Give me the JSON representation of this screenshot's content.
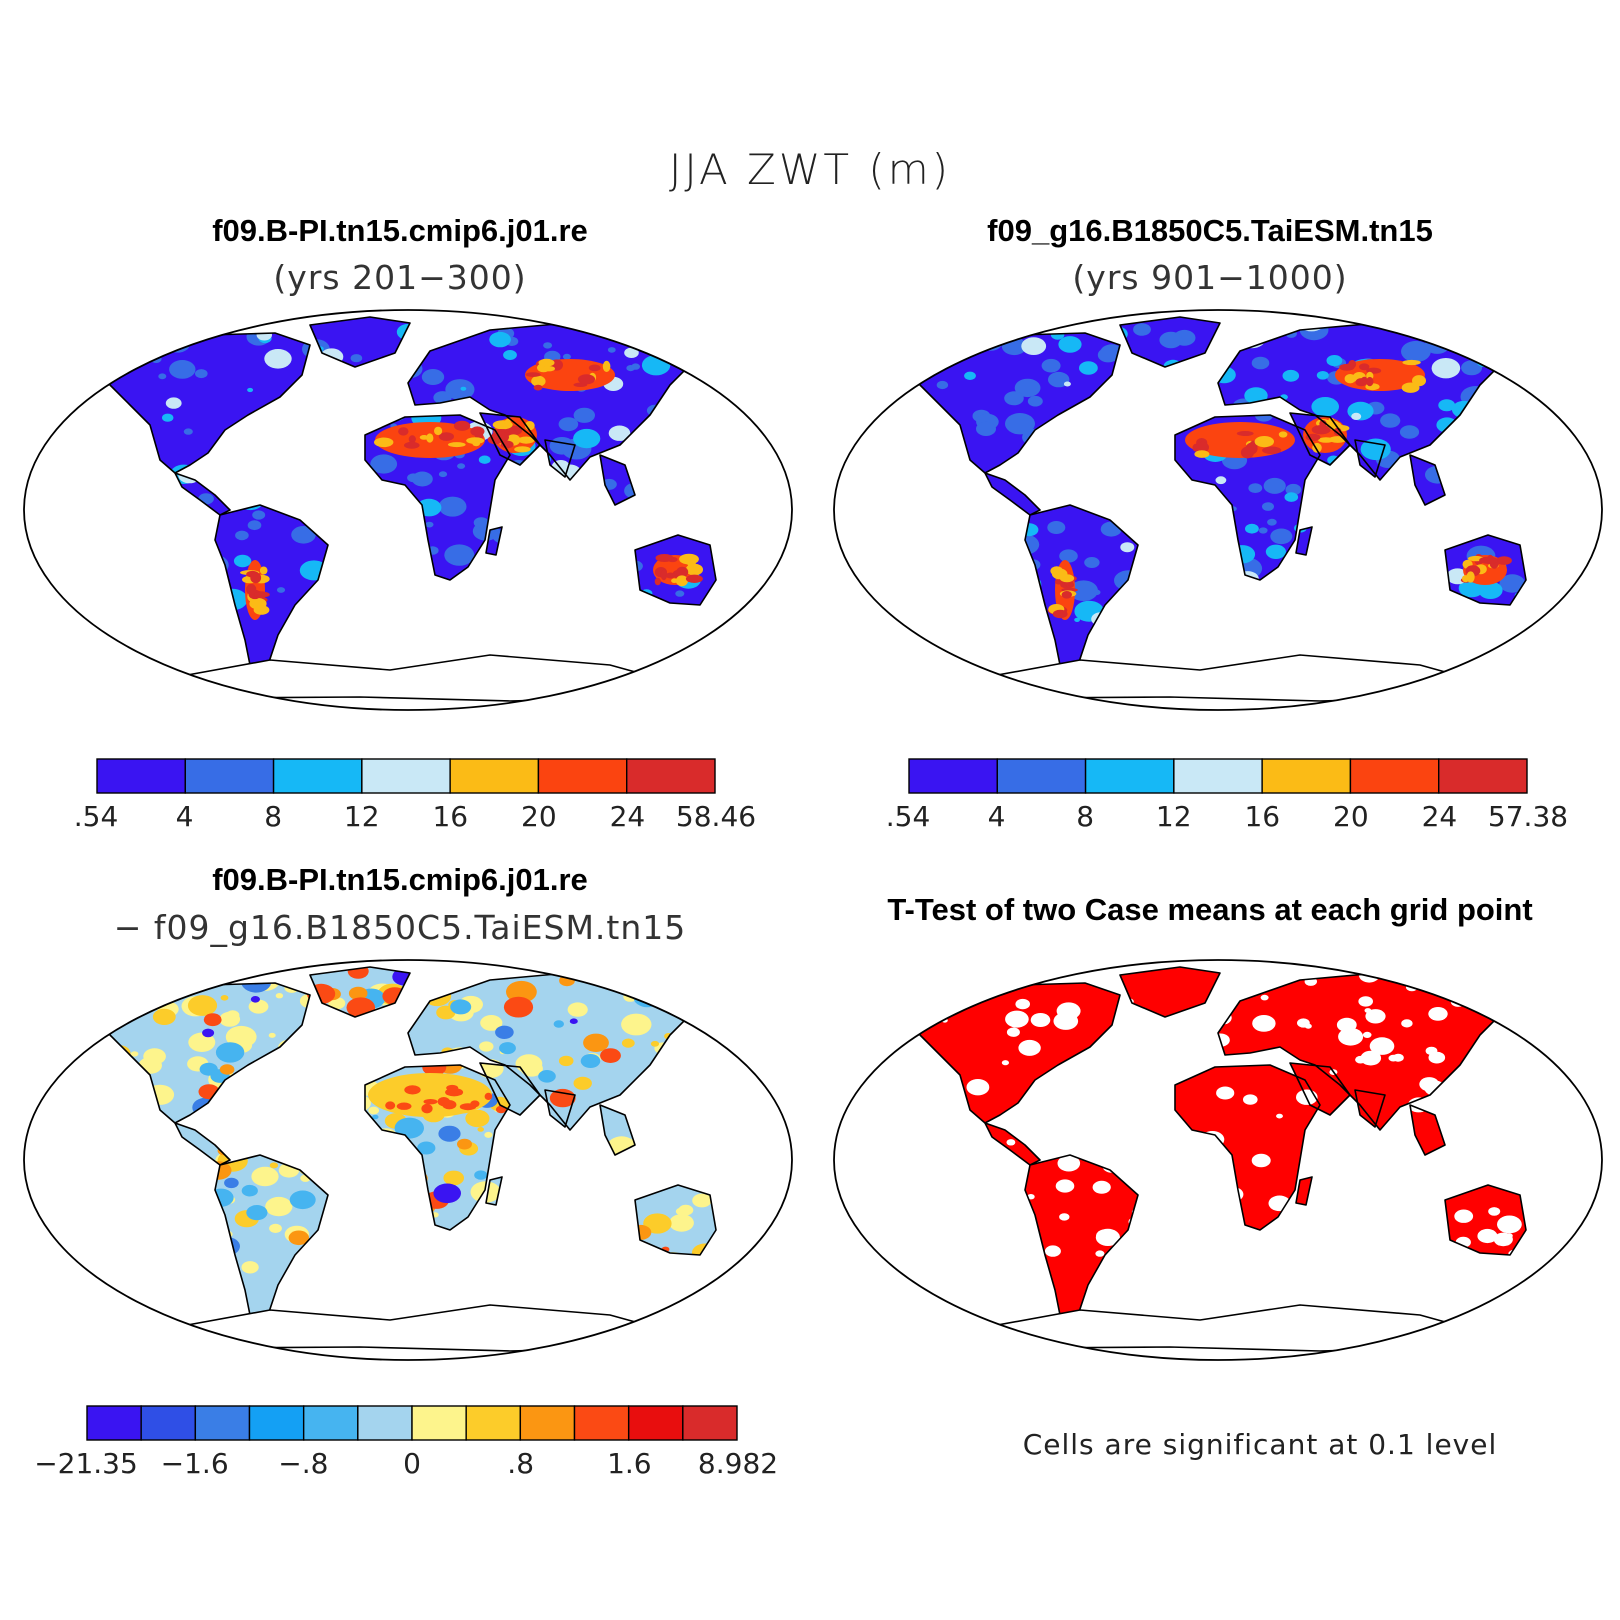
{
  "title": "JJA ZWT (m)",
  "panels": [
    {
      "title": "f09.B-PI.tn15.cmip6.j01.re",
      "subtitle": "(yrs 201−300)",
      "colorbar": {
        "colors": [
          "#3a14f2",
          "#376de6",
          "#16b8f6",
          "#c9e8f6",
          "#fbbb16",
          "#fb4410",
          "#d92b2b"
        ],
        "ticks": [
          ".54",
          "4",
          "8",
          "12",
          "16",
          "20",
          "24",
          "58.46"
        ]
      }
    },
    {
      "title": "f09_g16.B1850C5.TaiESM.tn15",
      "subtitle": "(yrs 901−1000)",
      "colorbar": {
        "colors": [
          "#3a14f2",
          "#376de6",
          "#16b8f6",
          "#c9e8f6",
          "#fbbb16",
          "#fb4410",
          "#d92b2b"
        ],
        "ticks": [
          ".54",
          "4",
          "8",
          "12",
          "16",
          "20",
          "24",
          "57.38"
        ]
      }
    },
    {
      "title": "f09.B-PI.tn15.cmip6.j01.re",
      "subtitle": "− f09_g16.B1850C5.TaiESM.tn15",
      "colorbar": {
        "colors": [
          "#3a14f2",
          "#2f4fe6",
          "#3a7ee6",
          "#14a0f4",
          "#46b4f0",
          "#a4d4ee",
          "#fdf48c",
          "#fccc2a",
          "#fb9612",
          "#fb4a14",
          "#e80e0e",
          "#d92b2b"
        ],
        "ticks": [
          "−21.35",
          "−1.6",
          "−.8",
          "0",
          ".8",
          "1.6",
          "8.982"
        ]
      }
    },
    {
      "title": "T-Test of two Case means at each grid point",
      "note": "Cells are significant at 0.1 level"
    }
  ]
}
